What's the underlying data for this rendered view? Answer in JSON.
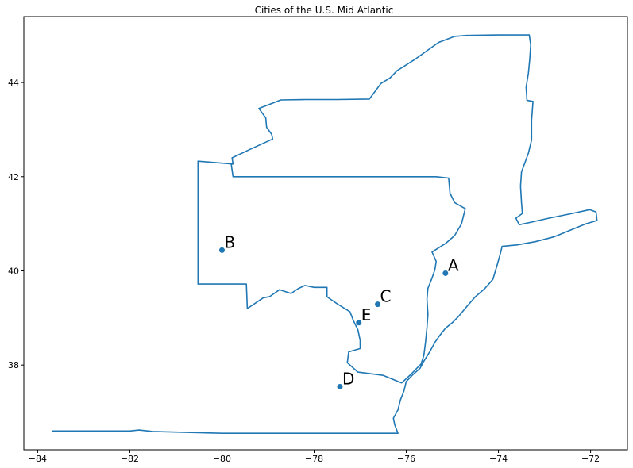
{
  "map": {
    "title": "Cities of the U.S. Mid Atlantic",
    "x_ticks": [
      -84,
      -82,
      -80,
      -78,
      -76,
      -74,
      -72
    ],
    "y_ticks": [
      38,
      40,
      42,
      44
    ],
    "x_range": [
      -84.3,
      -71.2
    ],
    "y_range": [
      36.2,
      45.4
    ],
    "line_color": "#1f77b4",
    "point_color": "#1f77b4",
    "border": [
      [
        -83.68,
        36.6
      ],
      [
        -83.0,
        36.6
      ],
      [
        -82.0,
        36.6
      ],
      [
        -81.8,
        36.62
      ],
      [
        -81.5,
        36.59
      ],
      [
        -80.0,
        36.55
      ],
      [
        -79.0,
        36.55
      ],
      [
        -78.0,
        36.55
      ],
      [
        -77.0,
        36.55
      ],
      [
        -76.18,
        36.55
      ],
      [
        -76.25,
        36.73
      ],
      [
        -76.28,
        36.87
      ],
      [
        -76.18,
        37.05
      ],
      [
        -76.13,
        37.25
      ],
      [
        -76.05,
        37.45
      ],
      [
        -76.0,
        37.65
      ],
      [
        -75.85,
        37.8
      ],
      [
        -75.7,
        37.93
      ],
      [
        -75.62,
        38.08
      ],
      [
        -75.48,
        38.3
      ],
      [
        -75.38,
        38.48
      ],
      [
        -75.28,
        38.62
      ],
      [
        -75.15,
        38.78
      ],
      [
        -75.0,
        38.9
      ],
      [
        -74.85,
        39.05
      ],
      [
        -74.68,
        39.25
      ],
      [
        -74.5,
        39.45
      ],
      [
        -74.3,
        39.62
      ],
      [
        -74.12,
        39.82
      ],
      [
        -74.02,
        40.15
      ],
      [
        -73.95,
        40.4
      ],
      [
        -73.92,
        40.52
      ],
      [
        -73.6,
        40.55
      ],
      [
        -73.2,
        40.62
      ],
      [
        -72.8,
        40.72
      ],
      [
        -72.4,
        40.88
      ],
      [
        -72.1,
        41.0
      ],
      [
        -71.86,
        41.07
      ],
      [
        -71.88,
        41.25
      ],
      [
        -72.02,
        41.3
      ],
      [
        -72.4,
        41.22
      ],
      [
        -72.9,
        41.12
      ],
      [
        -73.35,
        41.02
      ],
      [
        -73.55,
        40.98
      ],
      [
        -73.62,
        41.12
      ],
      [
        -73.48,
        41.22
      ],
      [
        -73.5,
        41.45
      ],
      [
        -73.52,
        41.8
      ],
      [
        -73.5,
        42.1
      ],
      [
        -73.35,
        42.5
      ],
      [
        -73.28,
        42.78
      ],
      [
        -73.28,
        43.2
      ],
      [
        -73.25,
        43.6
      ],
      [
        -73.38,
        43.62
      ],
      [
        -73.4,
        43.9
      ],
      [
        -73.35,
        44.2
      ],
      [
        -73.32,
        44.5
      ],
      [
        -73.3,
        44.8
      ],
      [
        -73.33,
        45.01
      ],
      [
        -74.0,
        45.01
      ],
      [
        -74.7,
        45.0
      ],
      [
        -74.95,
        44.98
      ],
      [
        -75.3,
        44.85
      ],
      [
        -75.8,
        44.5
      ],
      [
        -76.2,
        44.25
      ],
      [
        -76.35,
        44.1
      ],
      [
        -76.55,
        43.98
      ],
      [
        -76.8,
        43.65
      ],
      [
        -77.5,
        43.64
      ],
      [
        -78.2,
        43.64
      ],
      [
        -78.72,
        43.63
      ],
      [
        -79.2,
        43.45
      ],
      [
        -79.05,
        43.25
      ],
      [
        -79.03,
        43.05
      ],
      [
        -78.92,
        42.9
      ],
      [
        -78.9,
        42.8
      ],
      [
        -79.35,
        42.6
      ],
      [
        -79.78,
        42.4
      ],
      [
        -79.76,
        42.27
      ],
      [
        -80.52,
        42.33
      ],
      [
        -80.52,
        41.5
      ],
      [
        -80.52,
        40.64
      ],
      [
        -80.52,
        40.0
      ],
      [
        -80.52,
        39.72
      ],
      [
        -79.47,
        39.72
      ],
      [
        -79.45,
        39.2
      ],
      [
        -79.25,
        39.33
      ],
      [
        -79.1,
        39.43
      ],
      [
        -78.97,
        39.45
      ],
      [
        -78.75,
        39.6
      ],
      [
        -78.5,
        39.52
      ],
      [
        -78.35,
        39.62
      ],
      [
        -78.2,
        39.69
      ],
      [
        -78.0,
        39.65
      ],
      [
        -77.72,
        39.65
      ],
      [
        -77.72,
        39.45
      ],
      [
        -77.5,
        39.3
      ],
      [
        -77.22,
        39.13
      ],
      [
        -77.15,
        38.95
      ],
      [
        -77.05,
        38.75
      ],
      [
        -77.0,
        38.52
      ],
      [
        -77.0,
        38.35
      ],
      [
        -77.25,
        38.28
      ],
      [
        -77.28,
        38.05
      ],
      [
        -77.05,
        37.85
      ],
      [
        -76.5,
        37.78
      ],
      [
        -76.1,
        37.62
      ],
      [
        -75.9,
        37.8
      ],
      [
        -75.75,
        37.95
      ],
      [
        -75.68,
        38.02
      ],
      [
        -75.62,
        38.2
      ],
      [
        -75.58,
        38.5
      ],
      [
        -75.55,
        38.8
      ],
      [
        -75.53,
        39.08
      ],
      [
        -75.55,
        39.4
      ],
      [
        -75.53,
        39.63
      ],
      [
        -75.44,
        39.85
      ],
      [
        -75.38,
        40.02
      ],
      [
        -75.35,
        40.2
      ],
      [
        -75.44,
        40.4
      ],
      [
        -75.15,
        40.58
      ],
      [
        -74.95,
        40.75
      ],
      [
        -74.8,
        41.0
      ],
      [
        -74.72,
        41.32
      ],
      [
        -74.95,
        41.45
      ],
      [
        -75.05,
        41.65
      ],
      [
        -75.08,
        41.97
      ],
      [
        -75.35,
        42.0
      ],
      [
        -76.0,
        42.0
      ],
      [
        -77.0,
        42.0
      ],
      [
        -78.0,
        42.0
      ],
      [
        -79.0,
        42.0
      ],
      [
        -79.76,
        42.0
      ],
      [
        -79.8,
        42.27
      ]
    ],
    "cities": [
      {
        "label": "A",
        "lon": -75.15,
        "lat": 39.95
      },
      {
        "label": "B",
        "lon": -80.0,
        "lat": 40.44
      },
      {
        "label": "C",
        "lon": -76.62,
        "lat": 39.29
      },
      {
        "label": "D",
        "lon": -77.44,
        "lat": 37.54
      },
      {
        "label": "E",
        "lon": -77.03,
        "lat": 38.9
      }
    ]
  }
}
